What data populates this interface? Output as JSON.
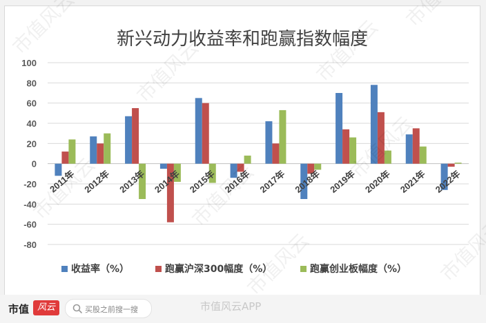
{
  "chart_data": {
    "type": "bar",
    "title": "新兴动力收益率和跑赢指数幅度",
    "categories": [
      "2011年",
      "2012年",
      "2013年",
      "2014年",
      "2015年",
      "2016年",
      "2017年",
      "2018年",
      "2019年",
      "2020年",
      "2021年",
      "2022年"
    ],
    "series": [
      {
        "name": "收益率（%）",
        "color": "#4f81bd",
        "values": [
          -12,
          27,
          47,
          -5,
          65,
          -14,
          42,
          -35,
          70,
          78,
          29,
          -26
        ]
      },
      {
        "name": "跑赢沪深300幅度（%）",
        "color": "#c0504d",
        "values": [
          12,
          20,
          55,
          -58,
          60,
          -8,
          20,
          -10,
          34,
          51,
          35,
          -3
        ]
      },
      {
        "name": "跑赢创业板幅度（%）",
        "color": "#9bbb59",
        "values": [
          24,
          30,
          -35,
          -18,
          -19,
          8,
          53,
          -6,
          26,
          13,
          17,
          1
        ]
      }
    ],
    "yticks": [
      100,
      80,
      60,
      40,
      20,
      0,
      -20,
      -40,
      -60,
      -80
    ],
    "ylim": [
      -80,
      100
    ],
    "grid": true,
    "legend_position": "bottom"
  },
  "footer": {
    "brand": "市值",
    "logo_text": "风云",
    "search_placeholder": "买股之前搜一搜",
    "watermark_text": "市值风云APP"
  },
  "watermark": {
    "text": "市值风云"
  }
}
